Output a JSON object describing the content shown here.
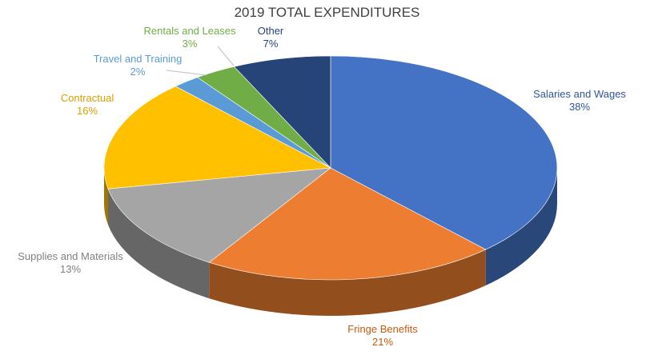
{
  "chart_data": {
    "type": "pie",
    "title": "2019 TOTAL EXPENDITURES",
    "slices": [
      {
        "label": "Salaries and Wages",
        "percent_label": "38%",
        "value": 38,
        "color": "#4472c4"
      },
      {
        "label": "Fringe Benefits",
        "percent_label": "21%",
        "value": 21,
        "color": "#ed7d31"
      },
      {
        "label": "Supplies and Materials",
        "percent_label": "13%",
        "value": 13,
        "color": "#a5a5a5"
      },
      {
        "label": "Contractual",
        "percent_label": "16%",
        "value": 16,
        "color": "#ffc000"
      },
      {
        "label": "Travel and Training",
        "percent_label": "2%",
        "value": 2,
        "color": "#5b9bd5"
      },
      {
        "label": "Rentals and Leases",
        "percent_label": "3%",
        "value": 3,
        "color": "#70ad47"
      },
      {
        "label": "Other",
        "percent_label": "7%",
        "value": 7,
        "color": "#264478"
      }
    ],
    "label_colors": {
      "Salaries and Wages": "#2f5597",
      "Fringe Benefits": "#c55a11",
      "Supplies and Materials": "#7f7f7f",
      "Contractual": "#d6a000",
      "Travel and Training": "#5b9bd5",
      "Rentals and Leases": "#70ad47",
      "Other": "#264478"
    }
  }
}
